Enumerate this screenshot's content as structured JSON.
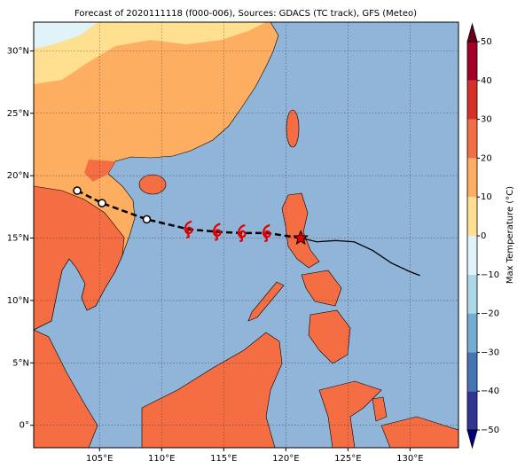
{
  "title": "Forecast of 2020111118 (f000-006), Sources: GDACS (TC track), GFS (Meteo)",
  "map": {
    "xlim": [
      99.7,
      133.9
    ],
    "ylim": [
      -1.8,
      32.3
    ],
    "xticks": [
      {
        "value": 105,
        "label": "105°E"
      },
      {
        "value": 110,
        "label": "110°E"
      },
      {
        "value": 115,
        "label": "115°E"
      },
      {
        "value": 120,
        "label": "120°E"
      },
      {
        "value": 125,
        "label": "125°E"
      },
      {
        "value": 130,
        "label": "130°E"
      }
    ],
    "yticks": [
      {
        "value": 0,
        "label": "0°"
      },
      {
        "value": 5,
        "label": "5°N"
      },
      {
        "value": 10,
        "label": "10°N"
      },
      {
        "value": 15,
        "label": "15°N"
      },
      {
        "value": 20,
        "label": "20°N"
      },
      {
        "value": 25,
        "label": "25°N"
      },
      {
        "value": 30,
        "label": "30°N"
      }
    ],
    "grid": true
  },
  "colorbar": {
    "label": "Max Temperature (°C)",
    "lim": [
      -50,
      50
    ],
    "ticks": [
      {
        "value": -50,
        "label": "−50"
      },
      {
        "value": -40,
        "label": "−40"
      },
      {
        "value": -30,
        "label": "−30"
      },
      {
        "value": -20,
        "label": "−20"
      },
      {
        "value": -10,
        "label": "−10"
      },
      0,
      10,
      20,
      30,
      40,
      50
    ],
    "colors": [
      "#313695",
      "#4575b4",
      "#74add1",
      "#abd9e9",
      "#e0f3f8",
      "#fee090",
      "#fdae61",
      "#f46d43",
      "#d73027",
      "#a50026"
    ],
    "extend_colors": [
      "#000080",
      "#67001f"
    ]
  },
  "track": {
    "observed": {
      "lon": [
        103.2,
        105.2,
        108.8
      ],
      "lat": [
        18.8,
        17.8,
        16.5
      ]
    },
    "forecast": {
      "lon": [
        112.2,
        114.5,
        116.5,
        118.5
      ],
      "lat": [
        15.7,
        15.5,
        15.4,
        15.4
      ]
    },
    "current": {
      "lon": 121.2,
      "lat": 15.0
    },
    "future": {
      "lon": [
        121.2,
        122.5,
        124.0,
        125.5,
        127.0,
        128.5,
        130.0,
        130.8
      ],
      "lat": [
        15.0,
        14.7,
        14.8,
        14.7,
        14.0,
        13.0,
        12.3,
        12.0
      ]
    }
  }
}
